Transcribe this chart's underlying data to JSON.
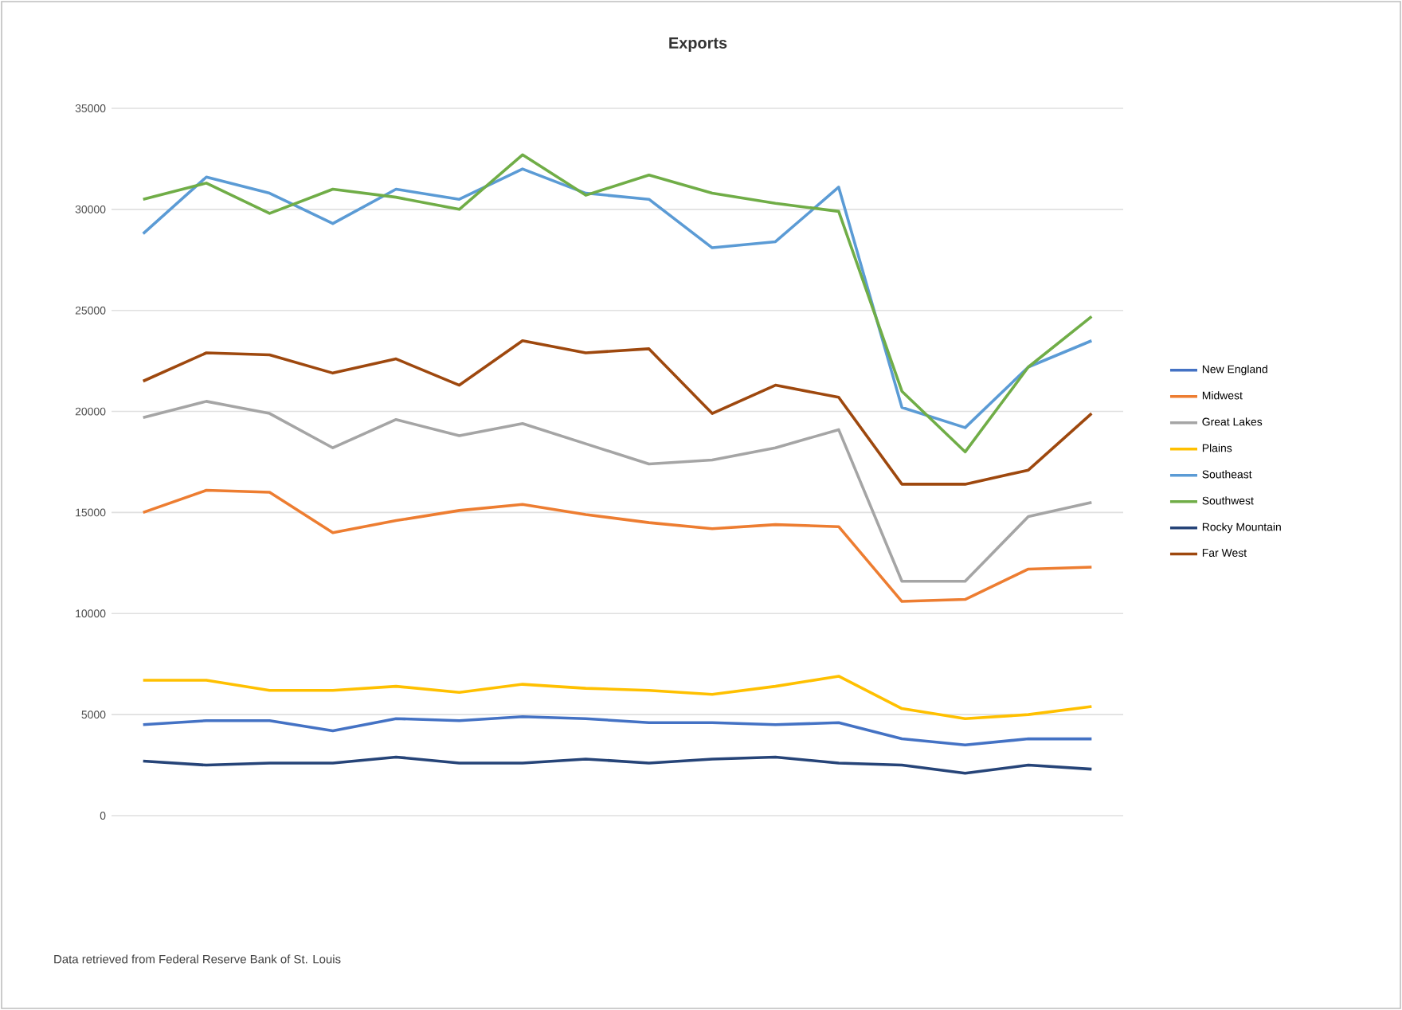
{
  "chart_data": {
    "type": "line",
    "title": "Exports",
    "categories": [
      null,
      null,
      null,
      null,
      null,
      null,
      null,
      null,
      null,
      null,
      null,
      null,
      null,
      null,
      null,
      null
    ],
    "series": [
      {
        "name": "New England",
        "color": "#4472c4",
        "values": [
          4500,
          4700,
          4700,
          4200,
          4800,
          4700,
          4900,
          4800,
          4600,
          4600,
          4500,
          4600,
          3800,
          3500,
          3800,
          3800
        ]
      },
      {
        "name": "Midwest",
        "color": "#ed7d31",
        "values": [
          15000,
          16100,
          16000,
          14000,
          14600,
          15100,
          15400,
          14900,
          14500,
          14200,
          14400,
          14300,
          10600,
          10700,
          12200,
          12300
        ]
      },
      {
        "name": "Great Lakes",
        "color": "#a5a5a5",
        "values": [
          19700,
          20500,
          19900,
          18200,
          19600,
          18800,
          19400,
          18400,
          17400,
          17600,
          18200,
          19100,
          11600,
          11600,
          14800,
          15500
        ]
      },
      {
        "name": "Plains",
        "color": "#ffc000",
        "values": [
          6700,
          6700,
          6200,
          6200,
          6400,
          6100,
          6500,
          6300,
          6200,
          6000,
          6400,
          6900,
          5300,
          4800,
          5000,
          5400
        ]
      },
      {
        "name": "Southeast",
        "color": "#5b9bd5",
        "values": [
          28800,
          31600,
          30800,
          29300,
          31000,
          30500,
          32000,
          30800,
          30500,
          28100,
          28400,
          31100,
          20200,
          19200,
          22200,
          23500
        ]
      },
      {
        "name": "Southwest",
        "color": "#70ad47",
        "values": [
          30500,
          31300,
          29800,
          31000,
          30600,
          30000,
          32700,
          30700,
          31700,
          30800,
          30300,
          29900,
          21000,
          18000,
          22200,
          24700
        ]
      },
      {
        "name": "Rocky Mountain",
        "color": "#264478",
        "values": [
          2700,
          2500,
          2600,
          2600,
          2900,
          2600,
          2600,
          2800,
          2600,
          2800,
          2900,
          2600,
          2500,
          2100,
          2500,
          2300
        ]
      },
      {
        "name": "Far West",
        "color": "#9e480e",
        "values": [
          21500,
          22900,
          22800,
          21900,
          22600,
          21300,
          23500,
          22900,
          23100,
          19900,
          21300,
          20700,
          16400,
          16400,
          17100,
          19900
        ]
      }
    ],
    "ylim": [
      0,
      35000
    ],
    "yticks": [
      0,
      5000,
      10000,
      15000,
      20000,
      25000,
      30000,
      35000
    ],
    "grid": "y",
    "legend": "right",
    "marker": "none",
    "line_style": "solid",
    "annotations": [
      "Data retrieved from Federal Reserve Bank of St. Louis"
    ]
  }
}
